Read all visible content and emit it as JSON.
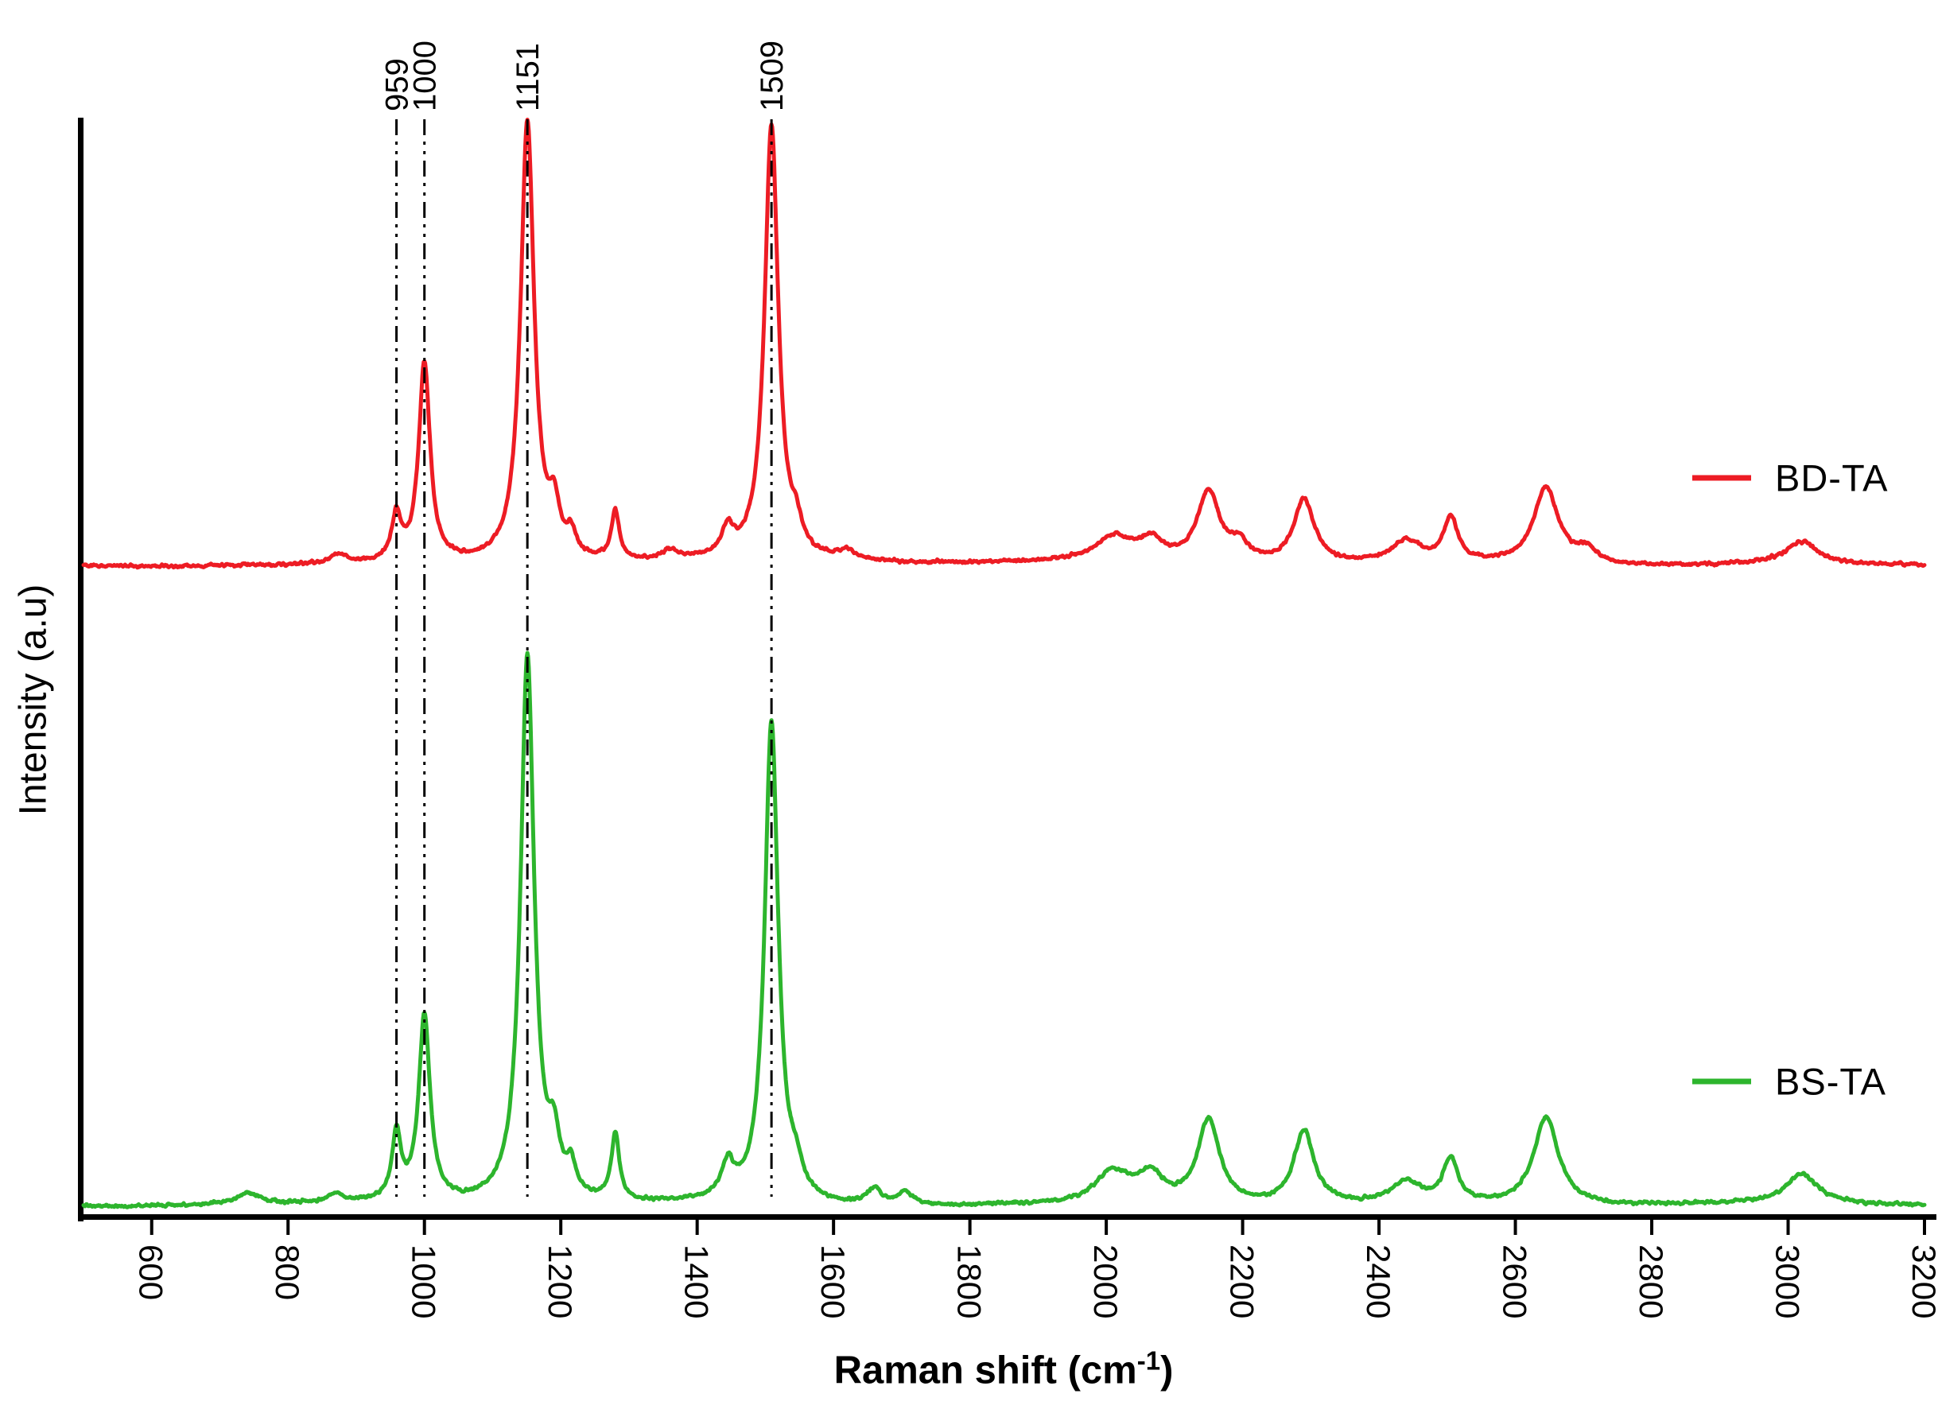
{
  "figure": {
    "background": "#ffffff"
  },
  "axes": {
    "x_label_main": "Raman shift (cm",
    "x_label_sup": "-1",
    "x_label_close": ")",
    "y_label": "Intensity (a.u)"
  },
  "chart_data": {
    "type": "line",
    "title": "",
    "xlabel": "Raman shift (cm-1)",
    "ylabel": "Intensity (a.u)",
    "x_range": [
      500,
      3200
    ],
    "x_ticks": [
      600,
      800,
      1000,
      1200,
      1400,
      1600,
      1800,
      2000,
      2200,
      2400,
      2600,
      2800,
      3000,
      3200
    ],
    "grid": false,
    "legend_position": "right-inside",
    "annotated_peaks": [
      959,
      1000,
      1151,
      1509
    ],
    "annotation_line_style": "dash-dot-dot vertical",
    "series": [
      {
        "name": "BD-TA",
        "color": "#ed1c24",
        "baseline_frac": 0.4067,
        "amplitude_frac": 0.403,
        "peaks": [
          [
            875,
            0.02,
            12
          ],
          [
            959,
            0.1,
            8
          ],
          [
            1000,
            0.45,
            10
          ],
          [
            1151,
            1.0,
            12
          ],
          [
            1190,
            0.1,
            10
          ],
          [
            1215,
            0.05,
            8
          ],
          [
            1280,
            0.11,
            7
          ],
          [
            1360,
            0.02,
            14
          ],
          [
            1445,
            0.06,
            11
          ],
          [
            1509,
            0.99,
            12
          ],
          [
            1545,
            0.05,
            10
          ],
          [
            1620,
            0.02,
            18
          ],
          [
            2010,
            0.055,
            32
          ],
          [
            2065,
            0.045,
            22
          ],
          [
            2150,
            0.16,
            20
          ],
          [
            2195,
            0.04,
            14
          ],
          [
            2290,
            0.145,
            18
          ],
          [
            2440,
            0.05,
            26
          ],
          [
            2505,
            0.1,
            13
          ],
          [
            2645,
            0.175,
            22
          ],
          [
            2705,
            0.03,
            18
          ],
          [
            3020,
            0.05,
            28
          ]
        ]
      },
      {
        "name": "BS-TA",
        "color": "#2db52d",
        "baseline_frac": 0.9925,
        "amplitude_frac": 0.501,
        "peaks": [
          [
            740,
            0.02,
            20
          ],
          [
            870,
            0.015,
            12
          ],
          [
            959,
            0.12,
            8
          ],
          [
            1000,
            0.34,
            10
          ],
          [
            1151,
            1.0,
            12
          ],
          [
            1190,
            0.09,
            10
          ],
          [
            1215,
            0.05,
            8
          ],
          [
            1280,
            0.12,
            7
          ],
          [
            1445,
            0.06,
            11
          ],
          [
            1509,
            0.88,
            12
          ],
          [
            1545,
            0.04,
            10
          ],
          [
            1660,
            0.03,
            12
          ],
          [
            1705,
            0.025,
            12
          ],
          [
            2010,
            0.06,
            32
          ],
          [
            2065,
            0.05,
            22
          ],
          [
            2150,
            0.155,
            20
          ],
          [
            2290,
            0.135,
            18
          ],
          [
            2440,
            0.04,
            26
          ],
          [
            2505,
            0.08,
            13
          ],
          [
            2645,
            0.16,
            22
          ],
          [
            3020,
            0.055,
            28
          ]
        ]
      }
    ]
  }
}
